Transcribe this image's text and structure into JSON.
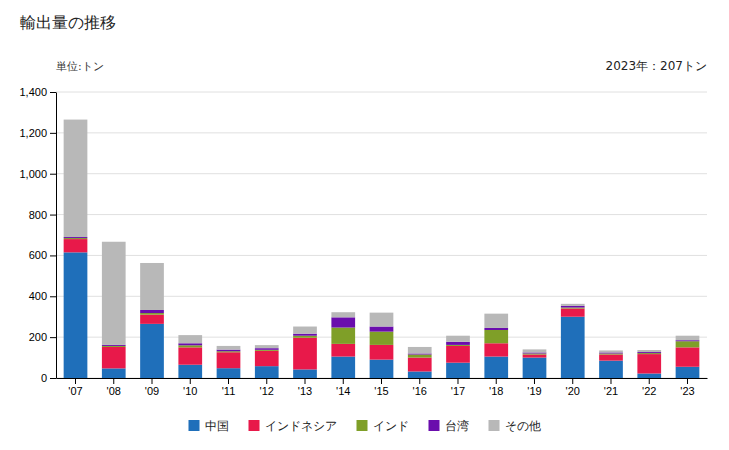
{
  "chart_data": {
    "type": "bar",
    "stacked": true,
    "title": "輸出量の推移",
    "ylabel": "単位:トン",
    "annotations": [
      "2023年：207トン"
    ],
    "categories": [
      "'07",
      "'08",
      "'09",
      "'10",
      "'11",
      "'12",
      "'13",
      "'14",
      "'15",
      "'16",
      "'17",
      "'18",
      "'19",
      "'20",
      "'21",
      "'22",
      "'23"
    ],
    "series": [
      {
        "name": "中国",
        "color": "#1f6fba",
        "values": [
          615,
          47,
          265,
          65,
          48,
          58,
          42,
          105,
          90,
          32,
          75,
          105,
          100,
          300,
          85,
          22,
          55
        ]
      },
      {
        "name": "インドネシア",
        "color": "#e8194a",
        "values": [
          65,
          105,
          45,
          85,
          78,
          75,
          155,
          62,
          72,
          68,
          82,
          65,
          15,
          40,
          30,
          95,
          95
        ]
      },
      {
        "name": "インド",
        "color": "#7f9f28",
        "values": [
          5,
          5,
          8,
          10,
          5,
          5,
          10,
          80,
          65,
          15,
          5,
          65,
          5,
          5,
          5,
          5,
          30
        ]
      },
      {
        "name": "台湾",
        "color": "#6a0dad",
        "values": [
          5,
          5,
          15,
          10,
          8,
          8,
          10,
          50,
          25,
          5,
          15,
          10,
          5,
          8,
          5,
          5,
          5
        ]
      },
      {
        "name": "その他",
        "color": "#b8b8b8",
        "values": [
          575,
          505,
          230,
          40,
          18,
          15,
          35,
          25,
          68,
          32,
          30,
          70,
          15,
          10,
          10,
          10,
          22
        ]
      }
    ],
    "ylim": [
      0,
      1400
    ],
    "yticks": [
      0,
      200,
      400,
      600,
      800,
      {
        "value": 1000,
        "label": "1,000"
      },
      {
        "value": 1200,
        "label": "1,200"
      },
      {
        "value": 1400,
        "label": "1,400"
      }
    ],
    "grid": true,
    "legend": "bottom"
  }
}
